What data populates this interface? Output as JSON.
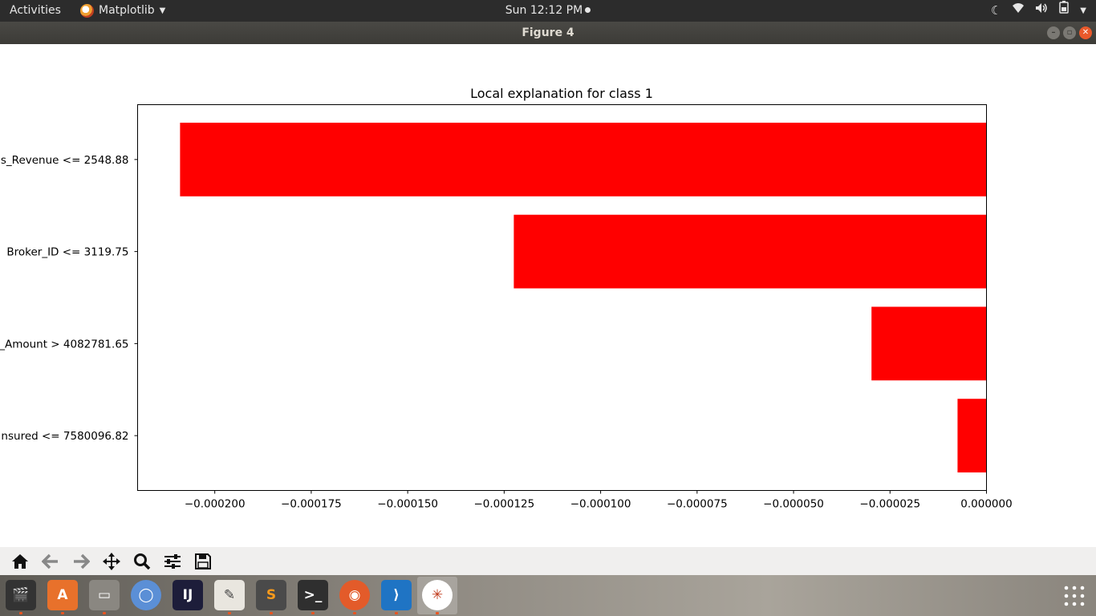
{
  "topbar": {
    "activities": "Activities",
    "app_name": "Matplotlib",
    "clock": "Sun 12:12 PM"
  },
  "window": {
    "title": "Figure 4"
  },
  "chart_data": {
    "type": "bar",
    "orientation": "horizontal",
    "title": "Local explanation for class 1",
    "categories": [
      "s_Revenue <= 2548.88",
      "Broker_ID <= 3119.75",
      "_Amount > 4082781.65",
      "nsured <= 7580096.82"
    ],
    "values": [
      -0.000209,
      -0.0001225,
      -2.98e-05,
      -7.5e-06
    ],
    "xlim": [
      -0.00022,
      0.0
    ],
    "xticks": [
      -0.0002,
      -0.000175,
      -0.00015,
      -0.000125,
      -0.0001,
      -7.5e-05,
      -5e-05,
      -2.5e-05,
      0.0
    ],
    "xtick_labels": [
      "−0.000200",
      "−0.000175",
      "−0.000150",
      "−0.000125",
      "−0.000100",
      "−0.000075",
      "−0.000050",
      "−0.000025",
      "0.000000"
    ],
    "bar_color": "#ff0000",
    "grid": false
  },
  "toolbar": {
    "home": "home-icon",
    "back": "arrow-left-icon",
    "forward": "arrow-right-icon",
    "pan": "move-icon",
    "zoom": "zoom-icon",
    "configure": "sliders-icon",
    "save": "save-icon"
  },
  "dock": {
    "apps": [
      "video-editor",
      "software-center",
      "files",
      "chromium",
      "intellij",
      "text-editor",
      "sublime-text",
      "terminal",
      "firefox",
      "vscode",
      "matplotlib"
    ]
  }
}
